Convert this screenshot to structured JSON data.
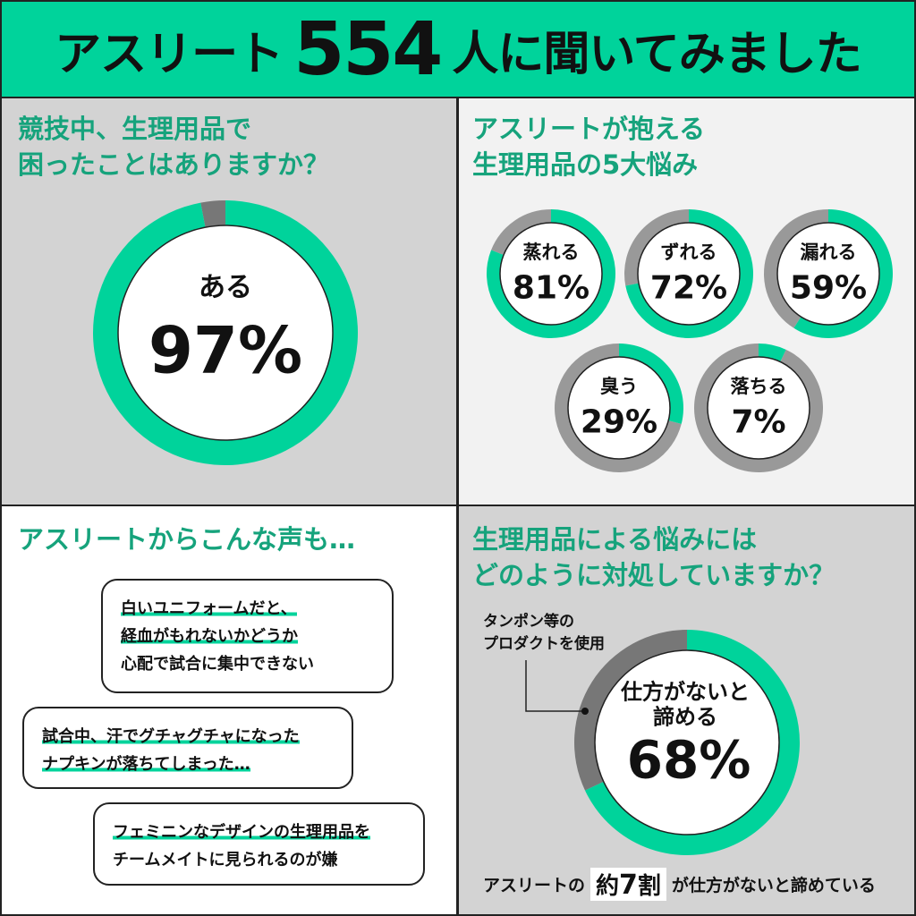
{
  "header": {
    "prefix": "アスリート",
    "number": "554",
    "suffix": "人に聞いてみました"
  },
  "panel1": {
    "question": "競技中、生理用品で\n困ったことはありますか？"
  },
  "panel2": {
    "question": "アスリートが抱える\n生理用品の5大悩み"
  },
  "panel3": {
    "title": "アスリートからこんな声も…",
    "bubbles": [
      {
        "lines": [
          "白いユニフォームだと、",
          "経血がもれないかどうか",
          "心配で試合に集中できない"
        ]
      },
      {
        "lines": [
          "試合中、汗でグチャグチャになった",
          "ナプキンが落ちてしまった…"
        ]
      },
      {
        "lines": [
          "フェミニンなデザインの生理用品を",
          "チームメイトに見られるのが嫌"
        ]
      }
    ]
  },
  "panel4": {
    "question": "生理用品による悩みには\nどのように対処していますか？",
    "annotation": "タンポン等の\nプロダクトを使用",
    "footer": {
      "pre": "アスリートの",
      "highlight_a": "約",
      "highlight_num": "7",
      "highlight_b": "割",
      "post": "が仕方がないと諦めている"
    }
  },
  "colors": {
    "green": "#00d39b",
    "gray": "#999999",
    "dark_gray": "#777777"
  },
  "chart_data": [
    {
      "type": "pie",
      "title": "競技中、生理用品で困ったことはありますか？",
      "slices": [
        {
          "label": "ある",
          "value": 97,
          "display": "97%"
        },
        {
          "label": "other",
          "value": 3
        }
      ]
    },
    {
      "type": "pie",
      "title": "アスリートが抱える生理用品の5大悩み",
      "items": [
        {
          "label": "蒸れる",
          "value": 81,
          "display": "81%"
        },
        {
          "label": "ずれる",
          "value": 72,
          "display": "72%"
        },
        {
          "label": "漏れる",
          "value": 59,
          "display": "59%"
        },
        {
          "label": "臭う",
          "value": 29,
          "display": "29%"
        },
        {
          "label": "落ちる",
          "value": 7,
          "display": "7%"
        }
      ]
    },
    {
      "type": "pie",
      "title": "生理用品による悩みにはどのように対処していますか？",
      "slices": [
        {
          "label": "仕方がないと\n諦める",
          "value": 68,
          "display": "68%"
        },
        {
          "label": "タンポン等のプロダクトを使用",
          "value": 32
        }
      ]
    }
  ]
}
